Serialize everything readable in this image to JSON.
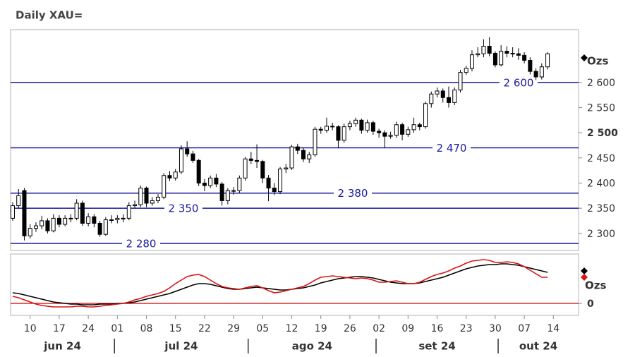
{
  "chart_data": [
    {
      "type": "candlestick",
      "title": "Daily XAU=",
      "legend": "Ozs",
      "color": "#000000",
      "level_color": "#1a1aa0",
      "x": [
        "2024-06-05",
        "2024-06-06",
        "2024-06-07",
        "2024-06-10",
        "2024-06-11",
        "2024-06-12",
        "2024-06-13",
        "2024-06-14",
        "2024-06-17",
        "2024-06-18",
        "2024-06-19",
        "2024-06-20",
        "2024-06-21",
        "2024-06-24",
        "2024-06-25",
        "2024-06-26",
        "2024-06-27",
        "2024-06-28",
        "2024-07-01",
        "2024-07-02",
        "2024-07-03",
        "2024-07-04",
        "2024-07-05",
        "2024-07-08",
        "2024-07-09",
        "2024-07-10",
        "2024-07-11",
        "2024-07-12",
        "2024-07-15",
        "2024-07-16",
        "2024-07-17",
        "2024-07-18",
        "2024-07-19",
        "2024-07-22",
        "2024-07-23",
        "2024-07-24",
        "2024-07-25",
        "2024-07-26",
        "2024-07-29",
        "2024-07-30",
        "2024-07-31",
        "2024-08-01",
        "2024-08-02",
        "2024-08-05",
        "2024-08-06",
        "2024-08-07",
        "2024-08-08",
        "2024-08-09",
        "2024-08-12",
        "2024-08-13",
        "2024-08-14",
        "2024-08-15",
        "2024-08-16",
        "2024-08-19",
        "2024-08-20",
        "2024-08-21",
        "2024-08-22",
        "2024-08-23",
        "2024-08-26",
        "2024-08-27",
        "2024-08-28",
        "2024-08-29",
        "2024-08-30",
        "2024-09-02",
        "2024-09-03",
        "2024-09-04",
        "2024-09-05",
        "2024-09-06",
        "2024-09-09",
        "2024-09-10",
        "2024-09-11",
        "2024-09-12",
        "2024-09-13",
        "2024-09-16",
        "2024-09-17",
        "2024-09-18",
        "2024-09-19",
        "2024-09-20",
        "2024-09-23",
        "2024-09-24",
        "2024-09-25",
        "2024-09-26",
        "2024-09-27",
        "2024-09-30",
        "2024-10-01",
        "2024-10-02",
        "2024-10-03",
        "2024-10-04",
        "2024-10-07",
        "2024-10-08",
        "2024-10-09",
        "2024-10-10",
        "2024-10-11"
      ],
      "open": [
        2330,
        2355,
        2385,
        2295,
        2310,
        2315,
        2325,
        2305,
        2330,
        2318,
        2330,
        2330,
        2360,
        2320,
        2333,
        2320,
        2298,
        2327,
        2327,
        2330,
        2330,
        2355,
        2357,
        2390,
        2360,
        2365,
        2372,
        2415,
        2410,
        2422,
        2468,
        2458,
        2445,
        2400,
        2395,
        2410,
        2398,
        2365,
        2385,
        2385,
        2410,
        2448,
        2445,
        2443,
        2410,
        2390,
        2383,
        2428,
        2430,
        2472,
        2465,
        2448,
        2456,
        2507,
        2505,
        2513,
        2512,
        2485,
        2512,
        2518,
        2525,
        2505,
        2520,
        2503,
        2500,
        2493,
        2495,
        2516,
        2497,
        2506,
        2516,
        2512,
        2558,
        2577,
        2583,
        2570,
        2560,
        2585,
        2620,
        2628,
        2655,
        2657,
        2672,
        2658,
        2635,
        2662,
        2658,
        2657,
        2654,
        2644,
        2622,
        2611,
        2631
      ],
      "high": [
        2362,
        2388,
        2390,
        2318,
        2322,
        2335,
        2330,
        2338,
        2336,
        2336,
        2338,
        2368,
        2365,
        2340,
        2338,
        2325,
        2332,
        2336,
        2336,
        2338,
        2362,
        2365,
        2395,
        2393,
        2372,
        2378,
        2420,
        2424,
        2428,
        2475,
        2483,
        2464,
        2448,
        2408,
        2415,
        2418,
        2402,
        2390,
        2392,
        2415,
        2452,
        2462,
        2477,
        2446,
        2416,
        2400,
        2432,
        2438,
        2476,
        2478,
        2470,
        2462,
        2512,
        2512,
        2530,
        2520,
        2515,
        2518,
        2524,
        2530,
        2528,
        2526,
        2524,
        2508,
        2505,
        2502,
        2522,
        2520,
        2512,
        2530,
        2520,
        2562,
        2582,
        2590,
        2588,
        2592,
        2590,
        2625,
        2633,
        2664,
        2670,
        2686,
        2690,
        2662,
        2674,
        2672,
        2670,
        2668,
        2660,
        2650,
        2628,
        2638,
        2660
      ],
      "low": [
        2325,
        2350,
        2286,
        2290,
        2303,
        2308,
        2300,
        2302,
        2312,
        2314,
        2322,
        2326,
        2315,
        2314,
        2312,
        2293,
        2295,
        2320,
        2320,
        2322,
        2326,
        2350,
        2352,
        2352,
        2355,
        2360,
        2368,
        2404,
        2405,
        2418,
        2452,
        2440,
        2394,
        2384,
        2390,
        2392,
        2355,
        2358,
        2377,
        2380,
        2405,
        2438,
        2430,
        2400,
        2364,
        2376,
        2378,
        2420,
        2426,
        2458,
        2442,
        2440,
        2452,
        2498,
        2500,
        2505,
        2470,
        2480,
        2505,
        2512,
        2498,
        2500,
        2496,
        2490,
        2470,
        2488,
        2490,
        2485,
        2492,
        2500,
        2505,
        2508,
        2550,
        2570,
        2560,
        2550,
        2555,
        2580,
        2615,
        2622,
        2650,
        2650,
        2652,
        2630,
        2632,
        2650,
        2650,
        2645,
        2638,
        2616,
        2605,
        2606,
        2626
      ],
      "close": [
        2355,
        2375,
        2295,
        2310,
        2315,
        2325,
        2305,
        2330,
        2318,
        2330,
        2330,
        2360,
        2320,
        2333,
        2320,
        2298,
        2327,
        2327,
        2330,
        2330,
        2355,
        2357,
        2390,
        2360,
        2365,
        2372,
        2415,
        2410,
        2422,
        2468,
        2458,
        2445,
        2400,
        2395,
        2410,
        2398,
        2365,
        2385,
        2385,
        2410,
        2448,
        2445,
        2443,
        2410,
        2390,
        2383,
        2428,
        2430,
        2472,
        2465,
        2448,
        2456,
        2507,
        2505,
        2513,
        2512,
        2485,
        2512,
        2518,
        2525,
        2505,
        2520,
        2503,
        2500,
        2493,
        2495,
        2516,
        2497,
        2506,
        2516,
        2512,
        2558,
        2577,
        2583,
        2570,
        2560,
        2585,
        2620,
        2628,
        2655,
        2657,
        2672,
        2658,
        2635,
        2662,
        2658,
        2657,
        2654,
        2644,
        2622,
        2611,
        2631,
        2657
      ],
      "ylim": [
        2266,
        2705
      ],
      "yticks": [
        {
          "value": 2300,
          "label": "2 300"
        },
        {
          "value": 2350,
          "label": "2 350"
        },
        {
          "value": 2400,
          "label": "2 400"
        },
        {
          "value": 2450,
          "label": "2 450"
        },
        {
          "value": 2500,
          "label": "2 500",
          "bold": true
        },
        {
          "value": 2550,
          "label": "2 550"
        },
        {
          "value": 2600,
          "label": "2 600"
        }
      ],
      "levels": [
        {
          "value": 2280,
          "label": "2 280"
        },
        {
          "value": 2350,
          "label": "2 350"
        },
        {
          "value": 2380,
          "label": "2 380"
        },
        {
          "value": 2470,
          "label": "2 470"
        },
        {
          "value": 2600,
          "label": "2 600"
        }
      ]
    },
    {
      "type": "line",
      "legend": "Ozs",
      "zero_color": "#cc0000",
      "series": [
        {
          "color": "#000000",
          "values": [
            15,
            14,
            12,
            10,
            8,
            6,
            4,
            2,
            1,
            0,
            -1,
            -1,
            -2,
            -2,
            -2,
            -1,
            -1,
            -1,
            0,
            0,
            1,
            2,
            4,
            6,
            8,
            10,
            12,
            14,
            17,
            20,
            23,
            26,
            28,
            28,
            27,
            25,
            23,
            21,
            20,
            20,
            21,
            22,
            23,
            22,
            21,
            20,
            19,
            19,
            20,
            21,
            22,
            24,
            26,
            29,
            31,
            33,
            35,
            36,
            37,
            38,
            38,
            37,
            36,
            34,
            32,
            30,
            29,
            28,
            28,
            28,
            29,
            31,
            33,
            35,
            37,
            40,
            43,
            46,
            49,
            51,
            53,
            54,
            55,
            55,
            56,
            56,
            55,
            54,
            52,
            50,
            48,
            46,
            44
          ]
        },
        {
          "color": "#dd1111",
          "values": [
            10,
            8,
            5,
            2,
            -1,
            -3,
            -4,
            -5,
            -5,
            -5,
            -5,
            -4,
            -4,
            -5,
            -5,
            -4,
            -3,
            -2,
            -1,
            0,
            2,
            5,
            7,
            10,
            12,
            14,
            17,
            22,
            28,
            33,
            38,
            40,
            41,
            38,
            33,
            28,
            24,
            22,
            21,
            20,
            22,
            24,
            25,
            22,
            18,
            15,
            16,
            18,
            20,
            22,
            24,
            28,
            33,
            37,
            38,
            39,
            38,
            37,
            36,
            35,
            36,
            35,
            33,
            30,
            30,
            31,
            32,
            30,
            28,
            28,
            30,
            34,
            38,
            41,
            43,
            46,
            50,
            53,
            57,
            60,
            61,
            62,
            61,
            58,
            58,
            59,
            58,
            56,
            52,
            47,
            42,
            37,
            37
          ]
        }
      ],
      "ylim": [
        -17,
        70
      ],
      "yticks": [
        0
      ],
      "xticks": [
        {
          "value": "2024-06-10",
          "label": "10"
        },
        {
          "value": "2024-06-17",
          "label": "17"
        },
        {
          "value": "2024-06-24",
          "label": "24"
        },
        {
          "value": "2024-07-01",
          "label": "01"
        },
        {
          "value": "2024-07-08",
          "label": "08"
        },
        {
          "value": "2024-07-15",
          "label": "15"
        },
        {
          "value": "2024-07-22",
          "label": "22"
        },
        {
          "value": "2024-07-29",
          "label": "29"
        },
        {
          "value": "2024-08-05",
          "label": "05"
        },
        {
          "value": "2024-08-12",
          "label": "12"
        },
        {
          "value": "2024-08-19",
          "label": "19"
        },
        {
          "value": "2024-08-26",
          "label": "26"
        },
        {
          "value": "2024-09-02",
          "label": "02"
        },
        {
          "value": "2024-09-09",
          "label": "09"
        },
        {
          "value": "2024-09-16",
          "label": "16"
        },
        {
          "value": "2024-09-23",
          "label": "23"
        },
        {
          "value": "2024-09-30",
          "label": "30"
        },
        {
          "value": "2024-10-07",
          "label": "07"
        },
        {
          "value": "2024-10-14",
          "label": "14"
        }
      ],
      "months": [
        {
          "value": "2024-06",
          "label": "jun 24"
        },
        {
          "value": "2024-07",
          "label": "jul 24"
        },
        {
          "value": "2024-08",
          "label": "ago 24"
        },
        {
          "value": "2024-09",
          "label": "set 24"
        },
        {
          "value": "2024-10",
          "label": "out 24"
        }
      ]
    }
  ]
}
